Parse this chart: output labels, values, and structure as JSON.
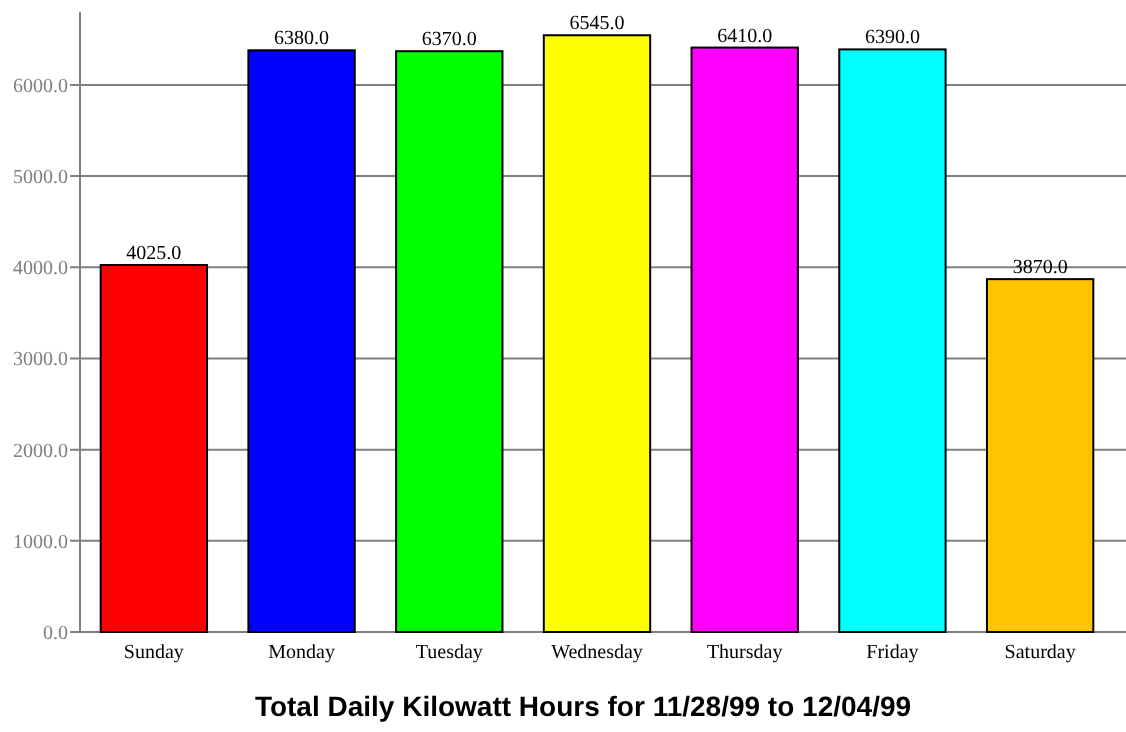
{
  "chart_data": {
    "type": "bar",
    "title": "Total Daily Kilowatt Hours for 11/28/99 to 12/04/99",
    "categories": [
      "Sunday",
      "Monday",
      "Tuesday",
      "Wednesday",
      "Thursday",
      "Friday",
      "Saturday"
    ],
    "values": [
      4025,
      6380,
      6370,
      6545,
      6410,
      6390,
      3870
    ],
    "colors": [
      "#ff0000",
      "#0000ff",
      "#00ff00",
      "#ffff00",
      "#ff00ff",
      "#00ffff",
      "#ffc400"
    ],
    "value_labels": [
      "4025.0",
      "6380.0",
      "6370.0",
      "6545.0",
      "6410.0",
      "6390.0",
      "3870.0"
    ],
    "ylim": [
      0,
      6800
    ],
    "yticks": [
      {
        "value": 0,
        "label": "0.0"
      },
      {
        "value": 1000,
        "label": "1000.0"
      },
      {
        "value": 2000,
        "label": "2000.0"
      },
      {
        "value": 3000,
        "label": "3000.0"
      },
      {
        "value": 4000,
        "label": "4000.0"
      },
      {
        "value": 5000,
        "label": "5000.0"
      },
      {
        "value": 6000,
        "label": "6000.0"
      }
    ],
    "grid": "y"
  }
}
